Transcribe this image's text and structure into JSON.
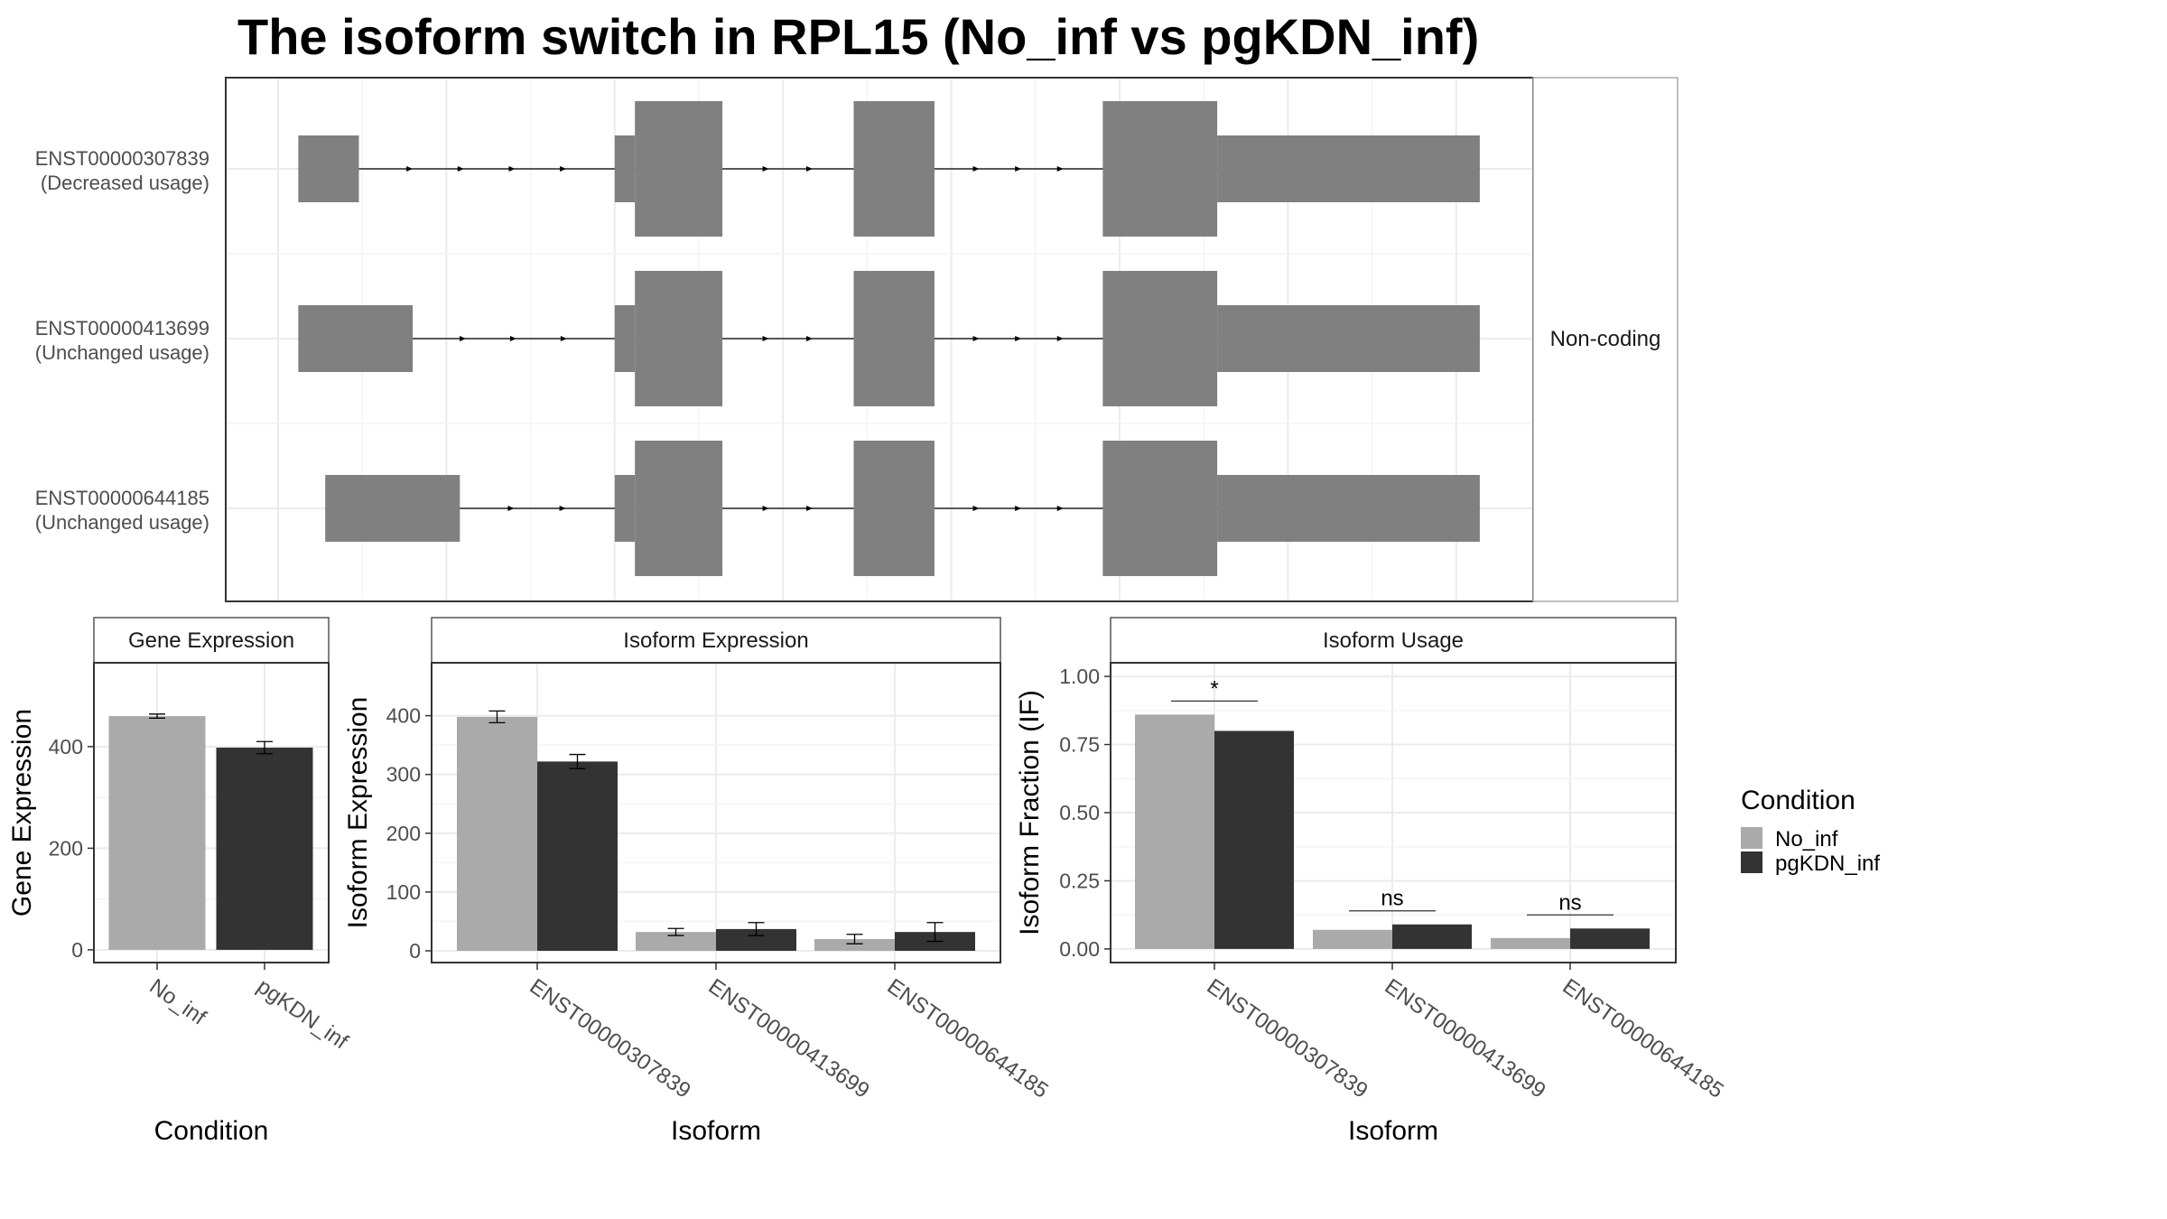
{
  "title": "The isoform switch in RPL15 (No_inf vs pgKDN_inf)",
  "colors": {
    "No_inf": "#aaaaaa",
    "pgKDN_inf": "#333333",
    "exon": "#808080"
  },
  "legend": {
    "title": "Condition",
    "items": [
      {
        "label": "No_inf",
        "color": "#aaaaaa"
      },
      {
        "label": "pgKDN_inf",
        "color": "#333333"
      }
    ]
  },
  "chart_data": [
    {
      "type": "transcript-structure",
      "facet_label": "Non-coding",
      "tracks": [
        {
          "id": "ENST00000307839",
          "usage": "(Decreased usage)",
          "exons": [
            [
              0.12,
              0.48,
              "thin"
            ],
            [
              2.0,
              2.12,
              "thin"
            ],
            [
              2.12,
              2.64,
              "thick"
            ],
            [
              3.42,
              3.9,
              "thick"
            ],
            [
              4.9,
              5.58,
              "thick"
            ],
            [
              5.58,
              7.14,
              "thin"
            ]
          ]
        },
        {
          "id": "ENST00000413699",
          "usage": "(Unchanged usage)",
          "exons": [
            [
              0.12,
              0.8,
              "thin"
            ],
            [
              2.0,
              2.12,
              "thin"
            ],
            [
              2.12,
              2.64,
              "thick"
            ],
            [
              3.42,
              3.9,
              "thick"
            ],
            [
              4.9,
              5.58,
              "thick"
            ],
            [
              5.58,
              7.14,
              "thin"
            ]
          ]
        },
        {
          "id": "ENST00000644185",
          "usage": "(Unchanged usage)",
          "exons": [
            [
              0.28,
              1.08,
              "thin"
            ],
            [
              2.0,
              2.12,
              "thin"
            ],
            [
              2.12,
              2.64,
              "thick"
            ],
            [
              3.42,
              3.9,
              "thick"
            ],
            [
              4.9,
              5.58,
              "thick"
            ],
            [
              5.58,
              7.14,
              "thin"
            ]
          ]
        }
      ]
    },
    {
      "type": "bar",
      "title": "Gene Expression",
      "xlabel": "Condition",
      "ylabel": "Gene Expression",
      "categories": [
        "No_inf",
        "pgKDN_inf"
      ],
      "values": [
        460,
        398
      ],
      "errors": [
        4,
        12
      ],
      "ylim": [
        -25,
        565
      ],
      "yticks": [
        0,
        200,
        400
      ]
    },
    {
      "type": "bar",
      "title": "Isoform Expression",
      "xlabel": "Isoform",
      "ylabel": "Isoform Expression",
      "categories": [
        "ENST00000307839",
        "ENST00000413699",
        "ENST00000644185"
      ],
      "series": [
        {
          "name": "No_inf",
          "values": [
            398,
            32,
            20
          ],
          "errors": [
            10,
            6,
            8
          ]
        },
        {
          "name": "pgKDN_inf",
          "values": [
            322,
            37,
            32
          ],
          "errors": [
            12,
            11,
            16
          ]
        }
      ],
      "ylim": [
        -20,
        490
      ],
      "yticks": [
        0,
        100,
        200,
        300,
        400
      ]
    },
    {
      "type": "bar",
      "title": "Isoform Usage",
      "xlabel": "Isoform",
      "ylabel": "Isoform Fraction (IF)",
      "categories": [
        "ENST00000307839",
        "ENST00000413699",
        "ENST00000644185"
      ],
      "series": [
        {
          "name": "No_inf",
          "values": [
            0.86,
            0.07,
            0.04
          ]
        },
        {
          "name": "pgKDN_inf",
          "values": [
            0.8,
            0.09,
            0.075
          ]
        }
      ],
      "significance": [
        "*",
        "ns",
        "ns"
      ],
      "ylim": [
        -0.05,
        1.05
      ],
      "yticks": [
        "0.00",
        "0.25",
        "0.50",
        "0.75",
        "1.00"
      ]
    }
  ]
}
